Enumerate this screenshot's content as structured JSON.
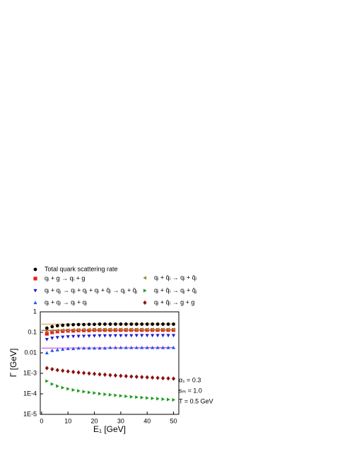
{
  "chart_data": {
    "type": "scatter",
    "yscale": "log",
    "x_label": "E₁ [GeV]",
    "y_label": "Γ [GeV]",
    "xlim": [
      -0.5,
      52
    ],
    "xticks": [
      0,
      10,
      20,
      30,
      40,
      50
    ],
    "ylim": [
      1e-05,
      1
    ],
    "yticks": [
      1,
      0.1,
      0.01,
      {
        "value": 0.001,
        "label": "1E-3"
      },
      {
        "value": 0.0001,
        "label": "1E-4"
      },
      {
        "value": 1e-05,
        "label": "1E-5"
      }
    ],
    "x": [
      2,
      4,
      6,
      8,
      10,
      12,
      14,
      16,
      18,
      20,
      22,
      24,
      26,
      28,
      30,
      32,
      34,
      36,
      38,
      40,
      42,
      44,
      46,
      48,
      50
    ],
    "series": [
      {
        "name": "Total quark scattering rate",
        "color": "#000000",
        "marker": "circle",
        "values": [
          0.16,
          0.19,
          0.21,
          0.22,
          0.23,
          0.235,
          0.24,
          0.24,
          0.245,
          0.245,
          0.25,
          0.25,
          0.25,
          0.25,
          0.25,
          0.25,
          0.25,
          0.25,
          0.25,
          0.25,
          0.25,
          0.25,
          0.25,
          0.25,
          0.25
        ]
      },
      {
        "name": "qᵢ + g → qᵢ + g",
        "color": "#e8201c",
        "marker": "square",
        "values": [
          0.085,
          0.1,
          0.11,
          0.115,
          0.12,
          0.12,
          0.125,
          0.125,
          0.125,
          0.13,
          0.13,
          0.13,
          0.13,
          0.13,
          0.13,
          0.13,
          0.13,
          0.13,
          0.13,
          0.13,
          0.13,
          0.13,
          0.13,
          0.13,
          0.13
        ]
      },
      {
        "name": "qᵢ + qⱼ → qᵢ + qⱼ + qᵢ + q̄ᵢ → qⱼ + q̄ⱼ",
        "color": "#1c1ccc",
        "marker": "triangle-down",
        "values": [
          0.045,
          0.052,
          0.056,
          0.059,
          0.061,
          0.063,
          0.064,
          0.065,
          0.066,
          0.067,
          0.068,
          0.068,
          0.068,
          0.069,
          0.069,
          0.069,
          0.069,
          0.07,
          0.07,
          0.07,
          0.07,
          0.07,
          0.07,
          0.07,
          0.07
        ]
      },
      {
        "name": "qᵢ + qᵢ → qᵢ + qᵢ",
        "color": "#1c5ce8",
        "marker": "triangle-up",
        "values": [
          0.01,
          0.013,
          0.014,
          0.015,
          0.016,
          0.016,
          0.017,
          0.017,
          0.017,
          0.017,
          0.017,
          0.017,
          0.018,
          0.018,
          0.018,
          0.018,
          0.018,
          0.018,
          0.018,
          0.018,
          0.018,
          0.018,
          0.018,
          0.018,
          0.018
        ]
      },
      {
        "name": "qᵢ + q̄ᵢ → qᵢ + q̄ᵢ",
        "color": "#9c8a2c",
        "marker": "triangle-left",
        "values": [
          0.11,
          0.12,
          0.125,
          0.13,
          0.13,
          0.135,
          0.135,
          0.14,
          0.14,
          0.14,
          0.14,
          0.14,
          0.14,
          0.14,
          0.14,
          0.14,
          0.14,
          0.14,
          0.14,
          0.14,
          0.14,
          0.14,
          0.14,
          0.14,
          0.14
        ]
      },
      {
        "name": "qᵢ + q̄ᵢ → qⱼ + q̄ⱼ",
        "color": "#1c9c1c",
        "marker": "triangle-right",
        "values": [
          0.00042,
          0.0003,
          0.00024,
          0.0002,
          0.000175,
          0.000155,
          0.00014,
          0.000128,
          0.000118,
          0.00011,
          0.000102,
          9.5e-05,
          9e-05,
          8.5e-05,
          8e-05,
          7.6e-05,
          7.2e-05,
          6.9e-05,
          6.6e-05,
          6.3e-05,
          6e-05,
          5.8e-05,
          5.5e-05,
          5.3e-05,
          5.1e-05
        ]
      },
      {
        "name": "qᵢ + q̄ᵢ → g + g",
        "color": "#8c1010",
        "marker": "diamond",
        "values": [
          0.0018,
          0.0016,
          0.00145,
          0.00135,
          0.00125,
          0.00117,
          0.0011,
          0.00104,
          0.00099,
          0.00094,
          0.0009,
          0.00086,
          0.00082,
          0.00079,
          0.00076,
          0.00073,
          0.0007,
          0.00068,
          0.00066,
          0.00064,
          0.00062,
          0.0006,
          0.00058,
          0.00057,
          0.00055
        ]
      }
    ],
    "curves": [
      {
        "color": "#f0a040",
        "x": [
          0,
          50
        ],
        "values": [
          0.25,
          0.26
        ]
      },
      {
        "color": "#b03020",
        "x": [
          0,
          50
        ],
        "values": [
          0.125,
          0.13
        ]
      },
      {
        "color": "#e040e0",
        "x": [
          0,
          50
        ],
        "values": [
          0.017,
          0.018
        ]
      }
    ],
    "annotations": [
      "αₛ = 0.3",
      "sₘ = 1.0",
      "T = 0.5 GeV"
    ]
  }
}
